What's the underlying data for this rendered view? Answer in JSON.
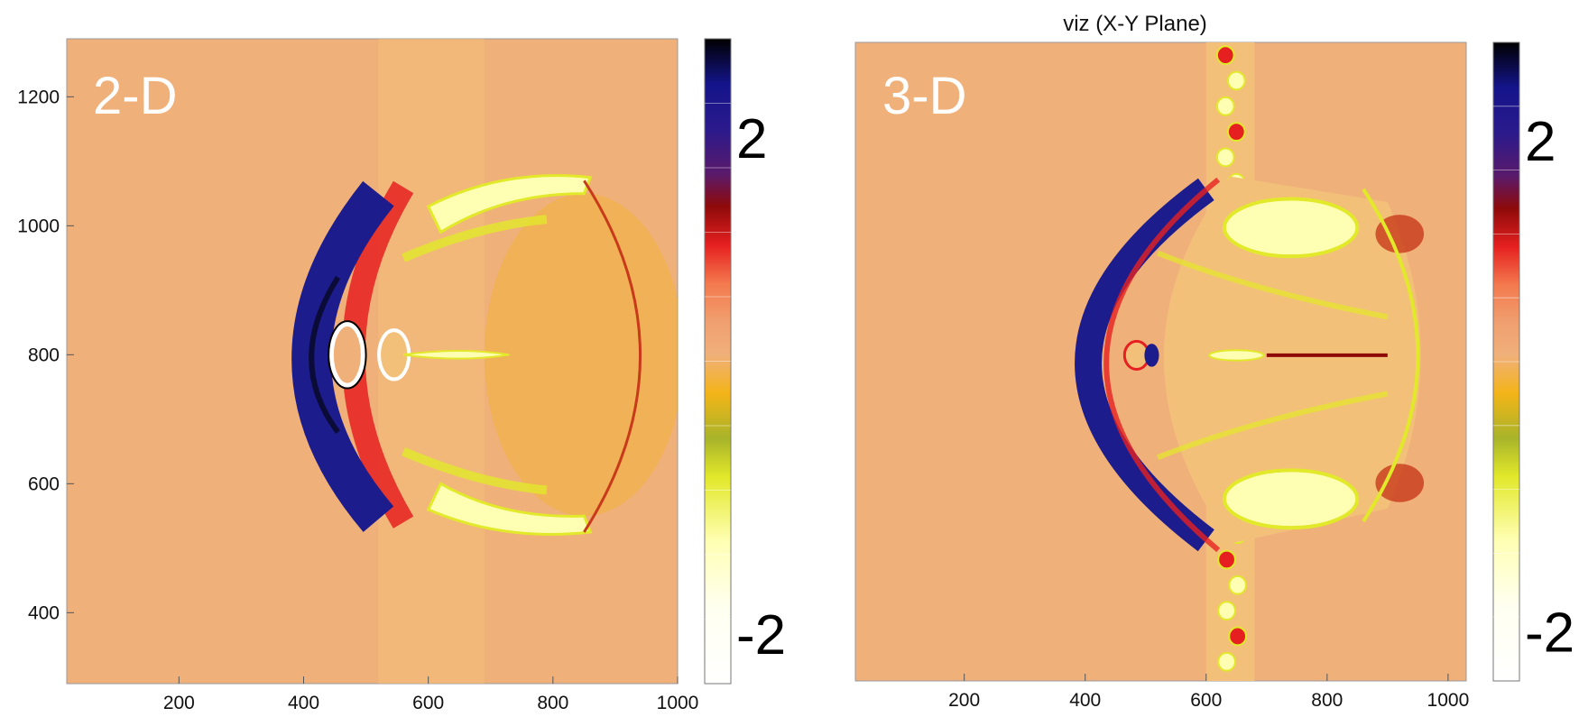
{
  "chart_data": [
    {
      "type": "heatmap",
      "title": "",
      "panel_label": "2-D",
      "xlabel": "",
      "ylabel": "",
      "xlim": [
        20,
        1000
      ],
      "ylim": [
        290,
        1290
      ],
      "x_ticks": [
        200,
        400,
        600,
        800,
        1000
      ],
      "y_ticks": [
        400,
        600,
        800,
        1000,
        1200
      ],
      "colorbar": {
        "range": [
          -2.4,
          2.8
        ],
        "labeled_ticks": [
          2,
          -2
        ]
      },
      "background_value": 0,
      "features": [
        {
          "name": "bow-shock",
          "nose_x": 385,
          "center_y": 790,
          "value": 2.2
        },
        {
          "name": "obstacle-ring",
          "x": 470,
          "y": 800,
          "value": -2
        },
        {
          "name": "tail-jet",
          "x": [
            560,
            730
          ],
          "y": 800,
          "value": -1.5
        },
        {
          "name": "outer-shock-arc",
          "nose_x": 990,
          "center_y": 800,
          "value": 0.8
        }
      ]
    },
    {
      "type": "heatmap",
      "title": "viz  (X-Y Plane)",
      "panel_label": "3-D",
      "xlabel": "",
      "ylabel": "",
      "xlim": [
        20,
        1030
      ],
      "ylim": [
        290,
        1290
      ],
      "x_ticks": [
        200,
        400,
        600,
        800,
        1000
      ],
      "y_ticks": [],
      "colorbar": {
        "range": [
          -2.4,
          2.8
        ],
        "labeled_ticks": [
          2,
          -2
        ]
      },
      "background_value": 0,
      "features": [
        {
          "name": "bow-shock",
          "nose_x": 330,
          "center_y": 790,
          "value": 2.3
        },
        {
          "name": "obstacle-blob",
          "x": 500,
          "y": 800,
          "value": 2.3
        },
        {
          "name": "tail-jet",
          "x": [
            580,
            900
          ],
          "y": 800,
          "value": -1.5
        },
        {
          "name": "vertical-band",
          "x": 640,
          "y": [
            290,
            1290
          ],
          "value": 0.8
        },
        {
          "name": "outer-shock-arc",
          "nose_x": 1010,
          "center_y": 800,
          "value": 0.8
        }
      ]
    }
  ],
  "colors": {
    "background": "#f0b07a",
    "colormap": [
      "#ffffff",
      "#ffffb4",
      "#e2e82a",
      "#f3b418",
      "#f0b07a",
      "#f37a4e",
      "#e62020",
      "#8e0a0a",
      "#5a1a6a",
      "#1c1c8c",
      "#000000"
    ]
  }
}
